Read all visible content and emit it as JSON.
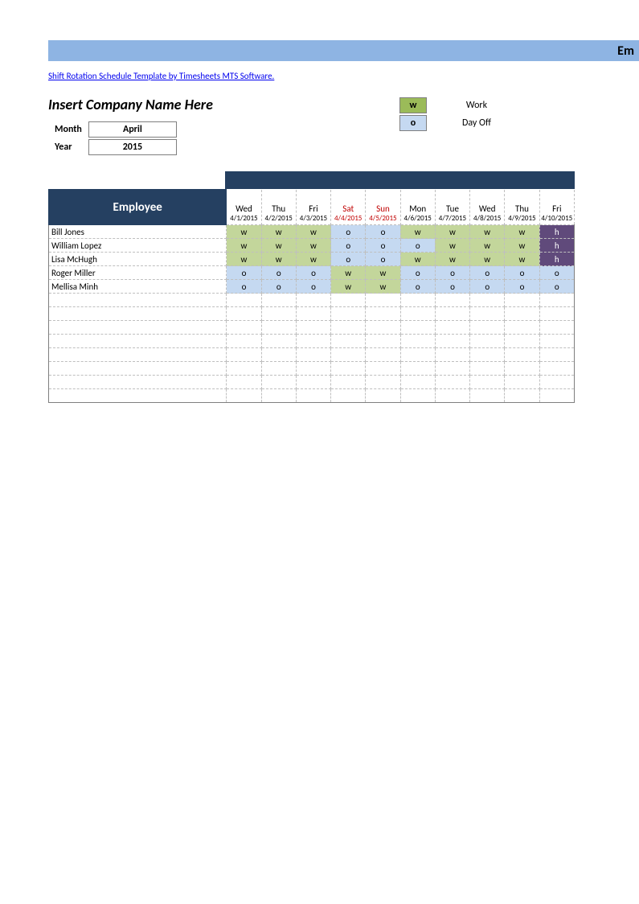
{
  "titlebar_text": "Em",
  "link_text": "Shift Rotation Schedule Template by Timesheets MTS Software.",
  "company_title": "Insert Company Name Here",
  "month_label": "Month",
  "month_value": "April",
  "year_label": "Year",
  "year_value": "2015",
  "legend": {
    "work_code": "w",
    "work_label": "Work",
    "off_code": "o",
    "off_label": "Day Off"
  },
  "colors": {
    "titlebar": "#8eb4e3",
    "darkband": "#254061",
    "work_cell": "#c3d69b",
    "off_cell": "#c5d9f1",
    "holiday_cell": "#604a7b",
    "legend_work": "#9bbb59",
    "legend_off": "#c5d9f1",
    "weekend_text": "#c00000"
  },
  "schedule": {
    "employee_header": "Employee",
    "day_col_width": 43,
    "employee_col_width": 220,
    "columns": [
      {
        "dow": "Wed",
        "date": "4/1/2015",
        "weekend": false
      },
      {
        "dow": "Thu",
        "date": "4/2/2015",
        "weekend": false
      },
      {
        "dow": "Fri",
        "date": "4/3/2015",
        "weekend": false
      },
      {
        "dow": "Sat",
        "date": "4/4/2015",
        "weekend": true
      },
      {
        "dow": "Sun",
        "date": "4/5/2015",
        "weekend": true
      },
      {
        "dow": "Mon",
        "date": "4/6/2015",
        "weekend": false
      },
      {
        "dow": "Tue",
        "date": "4/7/2015",
        "weekend": false
      },
      {
        "dow": "Wed",
        "date": "4/8/2015",
        "weekend": false
      },
      {
        "dow": "Thu",
        "date": "4/9/2015",
        "weekend": false
      },
      {
        "dow": "Fri",
        "date": "4/10/2015",
        "weekend": false
      }
    ],
    "rows": [
      {
        "name": "Bill Jones",
        "cells": [
          "w",
          "w",
          "w",
          "o",
          "o",
          "w",
          "w",
          "w",
          "w",
          "h"
        ]
      },
      {
        "name": "William Lopez",
        "cells": [
          "w",
          "w",
          "w",
          "o",
          "o",
          "o",
          "w",
          "w",
          "w",
          "h"
        ]
      },
      {
        "name": "Lisa McHugh",
        "cells": [
          "w",
          "w",
          "w",
          "o",
          "o",
          "w",
          "w",
          "w",
          "w",
          "h"
        ]
      },
      {
        "name": "Roger Miller",
        "cells": [
          "o",
          "o",
          "o",
          "w",
          "w",
          "o",
          "o",
          "o",
          "o",
          "o"
        ]
      },
      {
        "name": "Mellisa Minh",
        "cells": [
          "o",
          "o",
          "o",
          "w",
          "w",
          "o",
          "o",
          "o",
          "o",
          "o"
        ]
      }
    ],
    "empty_rows": 8
  }
}
